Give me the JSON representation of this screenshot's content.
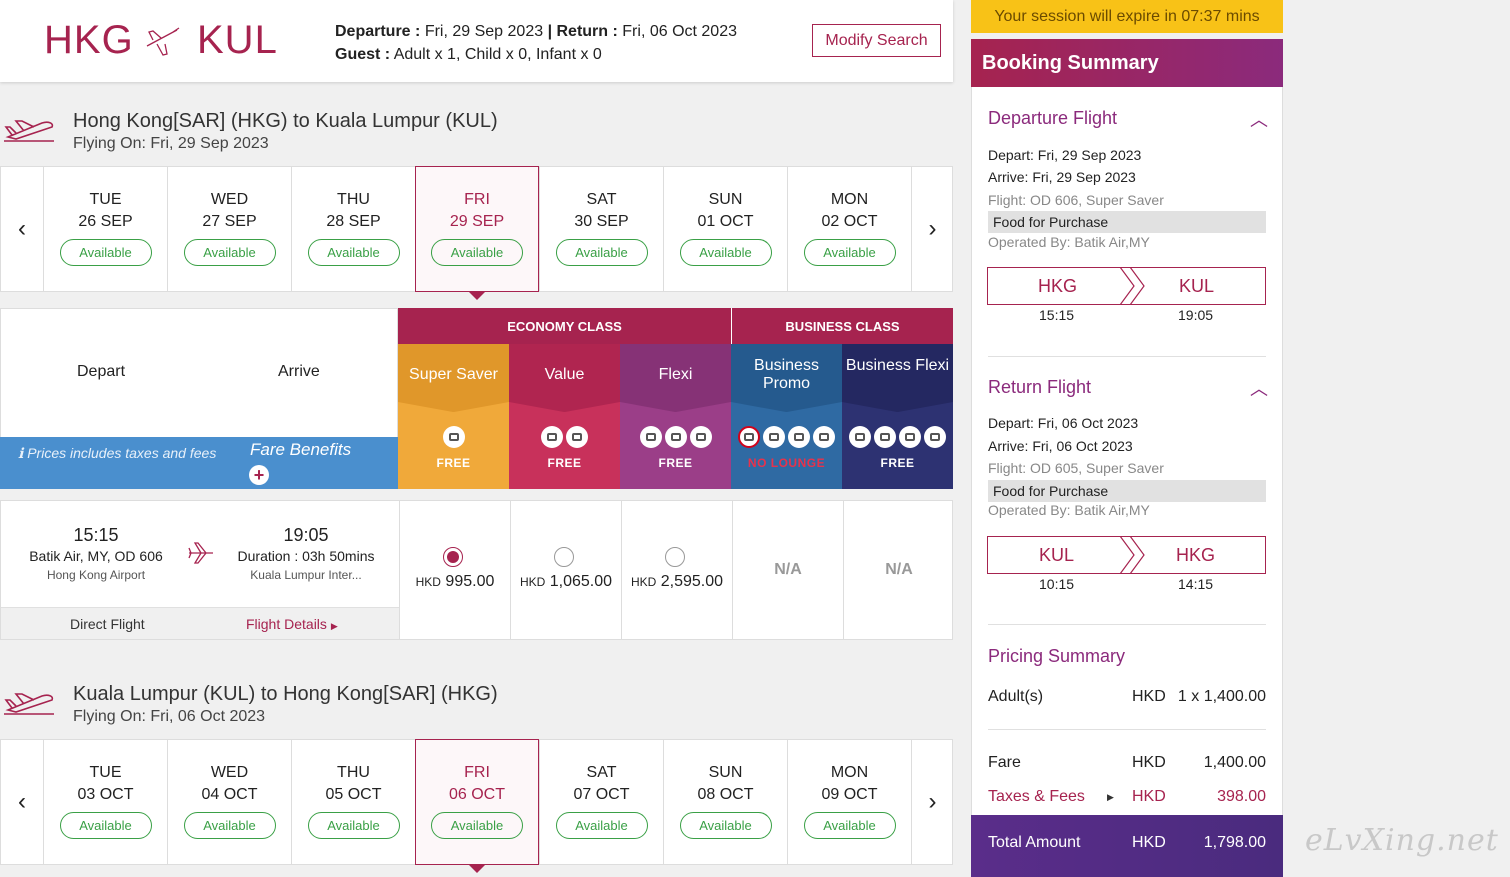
{
  "header": {
    "origin": "HKG",
    "destination": "KUL",
    "departure_label": "Departure :",
    "departure_value": "Fri, 29 Sep 2023",
    "return_label": "Return :",
    "return_value": "Fri, 06 Oct 2023",
    "guest_label": "Guest :",
    "guest_value": "Adult x 1, Child x 0, Infant x 0",
    "modify_label": "Modify Search"
  },
  "outbound": {
    "title": "Hong Kong[SAR] (HKG) to Kuala Lumpur (KUL)",
    "flying_on": "Flying On: Fri, 29 Sep 2023",
    "days": [
      {
        "dow": "TUE",
        "date": "26 SEP",
        "status": "Available"
      },
      {
        "dow": "WED",
        "date": "27 SEP",
        "status": "Available"
      },
      {
        "dow": "THU",
        "date": "28 SEP",
        "status": "Available"
      },
      {
        "dow": "FRI",
        "date": "29 SEP",
        "status": "Available"
      },
      {
        "dow": "SAT",
        "date": "30 SEP",
        "status": "Available"
      },
      {
        "dow": "SUN",
        "date": "01 OCT",
        "status": "Available"
      },
      {
        "dow": "MON",
        "date": "02 OCT",
        "status": "Available"
      }
    ]
  },
  "fare_table": {
    "depart_label": "Depart",
    "arrive_label": "Arrive",
    "prices_note": "Prices includes taxes and fees",
    "fare_benefits": "Fare Benefits",
    "economy_label": "ECONOMY CLASS",
    "business_label": "BUSINESS CLASS",
    "fares": [
      {
        "name": "Super Saver",
        "benefit": "FREE",
        "color": "#f0a93a"
      },
      {
        "name": "Value",
        "benefit": "FREE",
        "color": "#c8315b"
      },
      {
        "name": "Flexi",
        "benefit": "FREE",
        "color": "#9b3e88"
      },
      {
        "name": "Business Promo",
        "benefit": "NO LOUNGE",
        "color": "#2f6aa3"
      },
      {
        "name": "Business Flexi",
        "benefit": "FREE",
        "color": "#2d3272"
      }
    ]
  },
  "flight": {
    "dep_time": "15:15",
    "carrier": "Batik Air, MY, OD 606",
    "dep_airport": "Hong Kong Airport",
    "arr_time": "19:05",
    "duration": "Duration : 03h 50mins",
    "arr_airport": "Kuala Lumpur Inter...",
    "direct": "Direct Flight",
    "details_link": "Flight Details",
    "prices": [
      {
        "currency": "HKD",
        "amount": "995.00",
        "selected": true
      },
      {
        "currency": "HKD",
        "amount": "1,065.00",
        "selected": false
      },
      {
        "currency": "HKD",
        "amount": "2,595.00",
        "selected": false
      },
      {
        "na": "N/A"
      },
      {
        "na": "N/A"
      }
    ]
  },
  "inbound": {
    "title": "Kuala Lumpur (KUL) to Hong Kong[SAR] (HKG)",
    "flying_on": "Flying On: Fri, 06 Oct 2023",
    "days": [
      {
        "dow": "TUE",
        "date": "03 OCT",
        "status": "Available"
      },
      {
        "dow": "WED",
        "date": "04 OCT",
        "status": "Available"
      },
      {
        "dow": "THU",
        "date": "05 OCT",
        "status": "Available"
      },
      {
        "dow": "FRI",
        "date": "06 OCT",
        "status": "Available"
      },
      {
        "dow": "SAT",
        "date": "07 OCT",
        "status": "Available"
      },
      {
        "dow": "SUN",
        "date": "08 OCT",
        "status": "Available"
      },
      {
        "dow": "MON",
        "date": "09 OCT",
        "status": "Available"
      }
    ]
  },
  "session": "Your session will expire in 07:37 mins",
  "summary": {
    "title": "Booking Summary",
    "departure": {
      "heading": "Departure Flight",
      "depart": "Depart: Fri, 29 Sep 2023",
      "arrive": "Arrive: Fri, 29 Sep 2023",
      "flight": "Flight: OD 606, Super Saver",
      "food": "Food for Purchase",
      "operated": "Operated By: Batik Air,MY",
      "from": "HKG",
      "to": "KUL",
      "from_time": "15:15",
      "to_time": "19:05"
    },
    "return": {
      "heading": "Return Flight",
      "depart": "Depart: Fri, 06 Oct 2023",
      "arrive": "Arrive: Fri, 06 Oct 2023",
      "flight": "Flight: OD 605, Super Saver",
      "food": "Food for Purchase",
      "operated": "Operated By: Batik Air,MY",
      "from": "KUL",
      "to": "HKG",
      "from_time": "10:15",
      "to_time": "14:15"
    },
    "pricing": {
      "heading": "Pricing Summary",
      "adults_label": "Adult(s)",
      "adults_cur": "HKD",
      "adults_val": "1 x 1,400.00",
      "fare_label": "Fare",
      "fare_cur": "HKD",
      "fare_val": "1,400.00",
      "taxes_label": "Taxes & Fees",
      "taxes_cur": "HKD",
      "taxes_val": "398.00",
      "total_label": "Total Amount",
      "total_cur": "HKD",
      "total_val": "1,798.00"
    }
  },
  "watermark": "eLvXing.net",
  "colors": {
    "brand": "#a6234f",
    "available": "#3aa046",
    "session": "#f8c217"
  }
}
